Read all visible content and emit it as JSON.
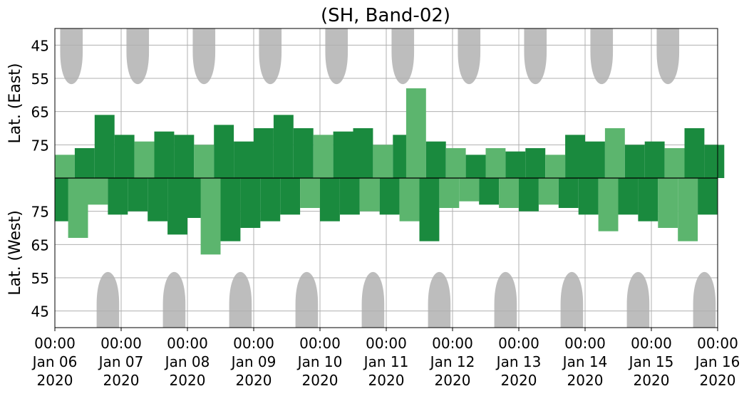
{
  "chart_data": {
    "type": "heatmap",
    "title": "(SH, Band-02)",
    "xlabel": "",
    "ylabel_top": "Lat. (East)",
    "ylabel_bottom": "Lat. (West)",
    "x_ticks": [
      [
        "00:00",
        "Jan 06",
        "2020"
      ],
      [
        "00:00",
        "Jan 07",
        "2020"
      ],
      [
        "00:00",
        "Jan 08",
        "2020"
      ],
      [
        "00:00",
        "Jan 09",
        "2020"
      ],
      [
        "00:00",
        "Jan 10",
        "2020"
      ],
      [
        "00:00",
        "Jan 11",
        "2020"
      ],
      [
        "00:00",
        "Jan 12",
        "2020"
      ],
      [
        "00:00",
        "Jan 13",
        "2020"
      ],
      [
        "00:00",
        "Jan 14",
        "2020"
      ],
      [
        "00:00",
        "Jan 15",
        "2020"
      ],
      [
        "00:00",
        "Jan 16",
        "2020"
      ]
    ],
    "y_ticks_top": [
      "45",
      "55",
      "65",
      "75"
    ],
    "y_ticks_bottom": [
      "75",
      "65",
      "55",
      "45"
    ],
    "xlim_days": [
      0,
      10
    ],
    "lat_range": [
      40,
      85
    ],
    "grid": true,
    "colors": {
      "sunlit": "#bdbdbd",
      "strong": "#1a8a3e",
      "weak": "#5cb56e",
      "grid": "#b0b0b0",
      "divider": "#000000"
    },
    "sunlit_regions": {
      "east_center_days": [
        0.25,
        1.25,
        2.25,
        3.25,
        4.25,
        5.25,
        6.25,
        7.25,
        8.25,
        9.25
      ],
      "west_center_days": [
        0.8,
        1.8,
        2.8,
        3.8,
        4.8,
        5.8,
        6.8,
        7.8,
        8.8,
        9.8
      ],
      "edge_lat": 60,
      "half_width_days_at_pole_edge": 0.17
    },
    "activity_east": [
      {
        "day": 0.0,
        "min_lat": 78,
        "intensity": "weak"
      },
      {
        "day": 0.3,
        "min_lat": 76,
        "intensity": "strong"
      },
      {
        "day": 0.6,
        "min_lat": 66,
        "intensity": "strong"
      },
      {
        "day": 0.9,
        "min_lat": 72,
        "intensity": "strong"
      },
      {
        "day": 1.2,
        "min_lat": 74,
        "intensity": "weak"
      },
      {
        "day": 1.5,
        "min_lat": 71,
        "intensity": "strong"
      },
      {
        "day": 1.8,
        "min_lat": 72,
        "intensity": "strong"
      },
      {
        "day": 2.1,
        "min_lat": 75,
        "intensity": "weak"
      },
      {
        "day": 2.4,
        "min_lat": 69,
        "intensity": "strong"
      },
      {
        "day": 2.7,
        "min_lat": 74,
        "intensity": "strong"
      },
      {
        "day": 3.0,
        "min_lat": 70,
        "intensity": "strong"
      },
      {
        "day": 3.3,
        "min_lat": 66,
        "intensity": "strong"
      },
      {
        "day": 3.6,
        "min_lat": 70,
        "intensity": "strong"
      },
      {
        "day": 3.9,
        "min_lat": 72,
        "intensity": "weak"
      },
      {
        "day": 4.2,
        "min_lat": 71,
        "intensity": "strong"
      },
      {
        "day": 4.5,
        "min_lat": 70,
        "intensity": "strong"
      },
      {
        "day": 4.8,
        "min_lat": 75,
        "intensity": "weak"
      },
      {
        "day": 5.1,
        "min_lat": 72,
        "intensity": "strong"
      },
      {
        "day": 5.3,
        "min_lat": 58,
        "intensity": "weak"
      },
      {
        "day": 5.6,
        "min_lat": 74,
        "intensity": "strong"
      },
      {
        "day": 5.9,
        "min_lat": 76,
        "intensity": "weak"
      },
      {
        "day": 6.2,
        "min_lat": 78,
        "intensity": "strong"
      },
      {
        "day": 6.5,
        "min_lat": 76,
        "intensity": "weak"
      },
      {
        "day": 6.8,
        "min_lat": 77,
        "intensity": "strong"
      },
      {
        "day": 7.1,
        "min_lat": 76,
        "intensity": "strong"
      },
      {
        "day": 7.4,
        "min_lat": 78,
        "intensity": "weak"
      },
      {
        "day": 7.7,
        "min_lat": 72,
        "intensity": "strong"
      },
      {
        "day": 8.0,
        "min_lat": 74,
        "intensity": "strong"
      },
      {
        "day": 8.3,
        "min_lat": 70,
        "intensity": "weak"
      },
      {
        "day": 8.6,
        "min_lat": 75,
        "intensity": "strong"
      },
      {
        "day": 8.9,
        "min_lat": 74,
        "intensity": "strong"
      },
      {
        "day": 9.2,
        "min_lat": 76,
        "intensity": "weak"
      },
      {
        "day": 9.5,
        "min_lat": 70,
        "intensity": "strong"
      },
      {
        "day": 9.8,
        "min_lat": 75,
        "intensity": "strong"
      }
    ],
    "activity_west": [
      {
        "day": 0.0,
        "min_lat": 72,
        "intensity": "strong"
      },
      {
        "day": 0.2,
        "min_lat": 67,
        "intensity": "weak"
      },
      {
        "day": 0.5,
        "min_lat": 77,
        "intensity": "weak"
      },
      {
        "day": 0.8,
        "min_lat": 74,
        "intensity": "strong"
      },
      {
        "day": 1.1,
        "min_lat": 75,
        "intensity": "strong"
      },
      {
        "day": 1.4,
        "min_lat": 72,
        "intensity": "strong"
      },
      {
        "day": 1.7,
        "min_lat": 68,
        "intensity": "strong"
      },
      {
        "day": 2.0,
        "min_lat": 73,
        "intensity": "strong"
      },
      {
        "day": 2.2,
        "min_lat": 62,
        "intensity": "weak"
      },
      {
        "day": 2.5,
        "min_lat": 66,
        "intensity": "strong"
      },
      {
        "day": 2.8,
        "min_lat": 70,
        "intensity": "strong"
      },
      {
        "day": 3.1,
        "min_lat": 72,
        "intensity": "strong"
      },
      {
        "day": 3.4,
        "min_lat": 74,
        "intensity": "strong"
      },
      {
        "day": 3.7,
        "min_lat": 76,
        "intensity": "weak"
      },
      {
        "day": 4.0,
        "min_lat": 72,
        "intensity": "strong"
      },
      {
        "day": 4.3,
        "min_lat": 74,
        "intensity": "strong"
      },
      {
        "day": 4.6,
        "min_lat": 75,
        "intensity": "weak"
      },
      {
        "day": 4.9,
        "min_lat": 74,
        "intensity": "strong"
      },
      {
        "day": 5.2,
        "min_lat": 72,
        "intensity": "weak"
      },
      {
        "day": 5.5,
        "min_lat": 66,
        "intensity": "strong"
      },
      {
        "day": 5.8,
        "min_lat": 76,
        "intensity": "weak"
      },
      {
        "day": 6.1,
        "min_lat": 78,
        "intensity": "weak"
      },
      {
        "day": 6.4,
        "min_lat": 77,
        "intensity": "strong"
      },
      {
        "day": 6.7,
        "min_lat": 76,
        "intensity": "weak"
      },
      {
        "day": 7.0,
        "min_lat": 75,
        "intensity": "strong"
      },
      {
        "day": 7.3,
        "min_lat": 77,
        "intensity": "weak"
      },
      {
        "day": 7.6,
        "min_lat": 76,
        "intensity": "strong"
      },
      {
        "day": 7.9,
        "min_lat": 74,
        "intensity": "strong"
      },
      {
        "day": 8.2,
        "min_lat": 69,
        "intensity": "weak"
      },
      {
        "day": 8.5,
        "min_lat": 74,
        "intensity": "strong"
      },
      {
        "day": 8.8,
        "min_lat": 72,
        "intensity": "strong"
      },
      {
        "day": 9.1,
        "min_lat": 70,
        "intensity": "weak"
      },
      {
        "day": 9.4,
        "min_lat": 66,
        "intensity": "weak"
      },
      {
        "day": 9.7,
        "min_lat": 74,
        "intensity": "strong"
      }
    ]
  }
}
